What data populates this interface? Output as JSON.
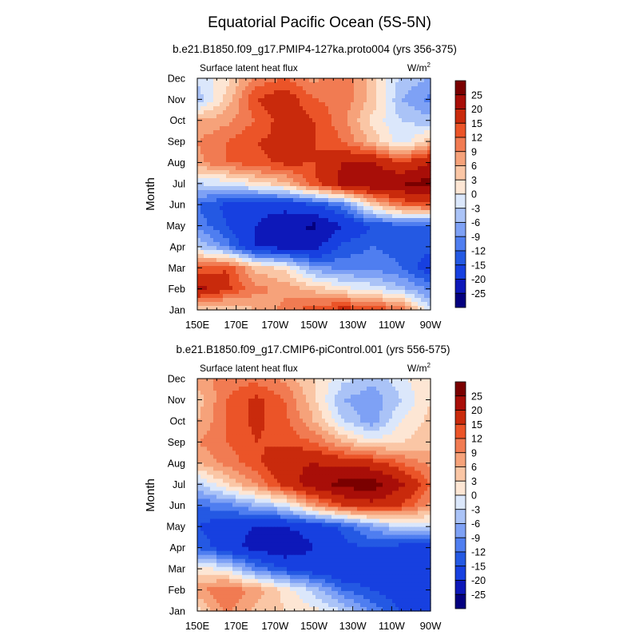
{
  "figure": {
    "title": "Equatorial Pacific Ocean (5S-5N)"
  },
  "chart_data": [
    {
      "type": "heatmap",
      "subtitle": "b.e21.B1850.f09_g17.PMIP4-127ka.proto004 (yrs 356-375)",
      "left_label": "Surface latent heat flux",
      "right_label": "W/m",
      "right_label_sup": "2",
      "ylabel": "Month",
      "xlabel": "",
      "x_ticks": [
        "150E",
        "170E",
        "170W",
        "150W",
        "130W",
        "110W",
        "90W"
      ],
      "y_ticks": [
        "Jan",
        "Feb",
        "Mar",
        "Apr",
        "May",
        "Jun",
        "Jul",
        "Aug",
        "Sep",
        "Oct",
        "Nov",
        "Dec"
      ],
      "xlim_deg_east": [
        150,
        270
      ],
      "levels": [
        -25,
        -20,
        -15,
        -12,
        -9,
        -6,
        -3,
        0,
        3,
        6,
        9,
        12,
        15,
        20,
        25
      ],
      "colorbar_labels": [
        "25",
        "20",
        "15",
        "12",
        "9",
        "6",
        "3",
        "0",
        "-3",
        "-6",
        "-9",
        "-12",
        "-15",
        "-20",
        "-25"
      ],
      "grid_lon": [
        150,
        165,
        180,
        195,
        210,
        225,
        240,
        255,
        270
      ],
      "values": [
        [
          3,
          2,
          6,
          10,
          14,
          17,
          15,
          12,
          -3
        ],
        [
          22,
          16,
          10,
          8,
          5,
          1,
          -1,
          -5,
          -10
        ],
        [
          12,
          15,
          5,
          2,
          -8,
          -10,
          -10,
          -12,
          -18
        ],
        [
          -3,
          -10,
          -20,
          -22,
          -22,
          -14,
          -12,
          -13,
          -14
        ],
        [
          -10,
          -15,
          -20,
          -24,
          -26,
          -20,
          -15,
          -13,
          -14
        ],
        [
          -12,
          -16,
          -18,
          -18,
          -15,
          -10,
          3,
          12,
          14
        ],
        [
          -3,
          -2,
          2,
          5,
          14,
          22,
          25,
          25,
          27
        ],
        [
          8,
          12,
          14,
          16,
          15,
          20,
          20,
          15,
          20
        ],
        [
          9,
          12,
          15,
          16,
          15,
          12,
          5,
          -2,
          5
        ],
        [
          6,
          8,
          12,
          17,
          15,
          10,
          2,
          -3,
          -5
        ],
        [
          -5,
          4,
          15,
          18,
          12,
          11,
          5,
          -6,
          -10
        ],
        [
          -2,
          2,
          10,
          12,
          8,
          12,
          4,
          -4,
          -6
        ]
      ]
    },
    {
      "type": "heatmap",
      "subtitle": "b.e21.B1850.f09_g17.CMIP6-piControl.001 (yrs 556-575)",
      "left_label": "Surface latent heat flux",
      "right_label": "W/m",
      "right_label_sup": "2",
      "ylabel": "Month",
      "xlabel": "",
      "x_ticks": [
        "150E",
        "170E",
        "170W",
        "150W",
        "130W",
        "110W",
        "90W"
      ],
      "y_ticks": [
        "Jan",
        "Feb",
        "Mar",
        "Apr",
        "May",
        "Jun",
        "Jul",
        "Aug",
        "Sep",
        "Oct",
        "Nov",
        "Dec"
      ],
      "xlim_deg_east": [
        150,
        270
      ],
      "levels": [
        -25,
        -20,
        -15,
        -12,
        -9,
        -6,
        -3,
        0,
        3,
        6,
        9,
        12,
        15,
        20,
        25
      ],
      "colorbar_labels": [
        "25",
        "20",
        "15",
        "12",
        "9",
        "6",
        "3",
        "0",
        "-3",
        "-6",
        "-9",
        "-12",
        "-15",
        "-20",
        "-25"
      ],
      "grid_lon": [
        150,
        165,
        180,
        195,
        210,
        225,
        240,
        255,
        270
      ],
      "values": [
        [
          2,
          10,
          5,
          3,
          1,
          -3,
          -10,
          -15,
          -20
        ],
        [
          8,
          12,
          8,
          2,
          -4,
          -12,
          -15,
          -18,
          -18
        ],
        [
          1,
          -1,
          -10,
          -15,
          -18,
          -20,
          -18,
          -18,
          -18
        ],
        [
          -12,
          -18,
          -22,
          -24,
          -20,
          -16,
          -15,
          -17,
          -18
        ],
        [
          -15,
          -18,
          -20,
          -20,
          -18,
          -14,
          -8,
          -2,
          -3
        ],
        [
          -12,
          -10,
          -6,
          -2,
          8,
          15,
          18,
          15,
          8
        ],
        [
          -4,
          3,
          9,
          17,
          23,
          27,
          28,
          21,
          12
        ],
        [
          6,
          10,
          14,
          19,
          20,
          18,
          17,
          12,
          8
        ],
        [
          9,
          12,
          15,
          14,
          12,
          6,
          1,
          3,
          5
        ],
        [
          6,
          12,
          16,
          13,
          6,
          -3,
          -8,
          0,
          4
        ],
        [
          4,
          12,
          16,
          12,
          4,
          -6,
          -8,
          -3,
          3
        ],
        [
          8,
          10,
          11,
          8,
          3,
          -2,
          -5,
          -1,
          3
        ]
      ]
    }
  ],
  "colors": {
    "palette": [
      "#04007f",
      "#0d18b9",
      "#1740e0",
      "#2459e3",
      "#4f7ef0",
      "#7ea1f5",
      "#aac3f7",
      "#dbe7fb",
      "#fde6d4",
      "#fac6a5",
      "#f6a27a",
      "#f17b52",
      "#eb5428",
      "#c92a0c",
      "#a80e08",
      "#7a0000"
    ]
  }
}
